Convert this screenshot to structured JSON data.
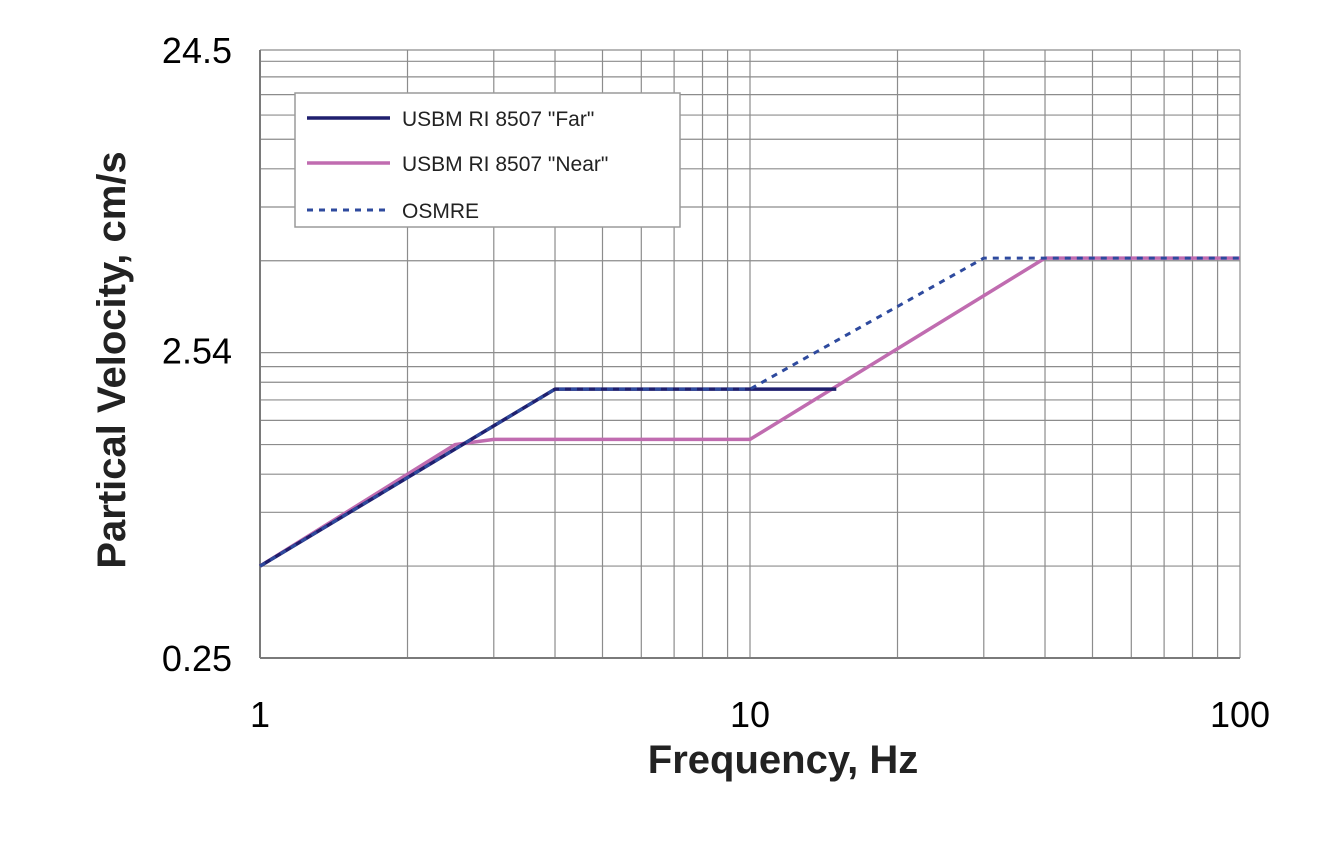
{
  "chart_data": {
    "type": "line",
    "title": "",
    "xlabel": "Frequency, Hz",
    "ylabel": "Partical Velocity, cm/s",
    "x_scale": "log",
    "y_scale": "log",
    "xlim": [
      1,
      100
    ],
    "ylim": [
      0.25,
      24.5
    ],
    "x_ticks": [
      {
        "value": 1,
        "label": "1"
      },
      {
        "value": 10,
        "label": "10"
      },
      {
        "value": 100,
        "label": "100"
      }
    ],
    "y_ticks": [
      {
        "value": 0.25,
        "label": "0.25"
      },
      {
        "value": 2.54,
        "label": "2.54"
      },
      {
        "value": 24.5,
        "label": "24.5"
      }
    ],
    "grid": true,
    "legend_position": "top-left",
    "series": [
      {
        "name": "USBM RI 8507 \"Far\"",
        "color": "#1f1f6e",
        "dash": "solid",
        "x": [
          1,
          4,
          15
        ],
        "y": [
          0.5,
          1.9,
          1.9
        ]
      },
      {
        "name": "USBM RI 8507 \"Near\"",
        "color": "#c06cb0",
        "dash": "solid",
        "x": [
          1,
          2.5,
          3,
          10,
          40,
          100
        ],
        "y": [
          0.5,
          1.25,
          1.3,
          1.3,
          5.1,
          5.1
        ]
      },
      {
        "name": "OSMRE",
        "color": "#2e4a9e",
        "dash": "dotted",
        "x": [
          1,
          4,
          10,
          30,
          100
        ],
        "y": [
          0.5,
          1.9,
          1.9,
          5.1,
          5.1
        ]
      }
    ]
  }
}
